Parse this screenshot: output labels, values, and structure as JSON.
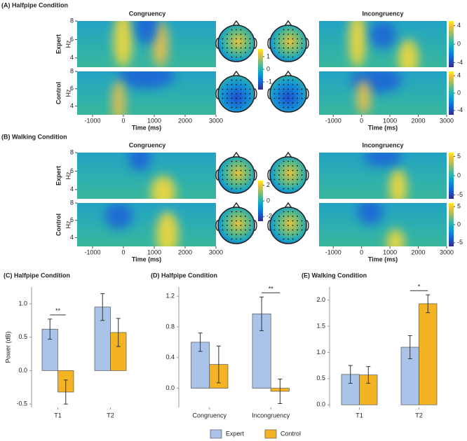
{
  "panels": {
    "a": {
      "label": "(A) Halfpipe Condition",
      "left_title": "Congruency",
      "right_title": "Incongruency",
      "rows": [
        "Expert",
        "Control"
      ],
      "y_axis_label": "Hz",
      "x_axis_label": "Time (ms)",
      "xlim": [
        -1500,
        3000
      ],
      "xticks": [
        -1000,
        0,
        1000,
        2000,
        3000
      ],
      "ylim": [
        3,
        8
      ],
      "yticks": [
        4,
        6,
        8
      ],
      "colorbar_lim": [
        -5,
        5
      ],
      "colorbar_ticks": [
        4,
        0,
        -4
      ],
      "topo_lim": [
        -1.6,
        1.6
      ],
      "topo_ticks": [
        1,
        0,
        -1
      ]
    },
    "b": {
      "label": "(B) Walking Condition",
      "left_title": "Congruency",
      "right_title": "Incongruency",
      "rows": [
        "Expert",
        "Control"
      ],
      "y_axis_label": "Hz",
      "x_axis_label": "Time (ms)",
      "xlim": [
        -1500,
        3000
      ],
      "xticks": [
        -1000,
        0,
        1000,
        2000,
        3000
      ],
      "ylim": [
        3,
        8
      ],
      "yticks": [
        4,
        6,
        8
      ],
      "colorbar_lim": [
        -6,
        6
      ],
      "colorbar_ticks": [
        5,
        0,
        -5
      ],
      "topo_lim": [
        -2.6,
        2.6
      ],
      "topo_ticks": [
        2,
        0,
        -2
      ]
    }
  },
  "chart_data": [
    {
      "type": "bar",
      "title": "(C) Halfpipe Condition",
      "y_label": "Power (dB)",
      "categories": [
        "T1",
        "T2"
      ],
      "series": [
        {
          "name": "Expert",
          "color": "#a9c4e8",
          "values": [
            0.62,
            0.95
          ],
          "errors": [
            0.15,
            0.2
          ]
        },
        {
          "name": "Control",
          "color": "#f3b323",
          "values": [
            -0.32,
            0.57
          ],
          "errors": [
            0.18,
            0.21
          ]
        }
      ],
      "ylim": [
        -0.55,
        1.25
      ],
      "yticks": [
        {
          "value": -0.5,
          "label": "-0.5"
        },
        {
          "value": 0,
          "label": "0.0"
        },
        {
          "value": 0.5,
          "label": "0.5"
        },
        {
          "value": 1,
          "label": "1.0"
        }
      ],
      "annotations": [
        {
          "text": "**",
          "x": "T1"
        }
      ]
    },
    {
      "type": "bar",
      "title": "(D) Halfpipe Condition",
      "categories": [
        "Congruency",
        "Incongruency"
      ],
      "series": [
        {
          "name": "Expert",
          "color": "#a9c4e8",
          "values": [
            0.6,
            0.97
          ],
          "errors": [
            0.12,
            0.22
          ]
        },
        {
          "name": "Control",
          "color": "#f3b323",
          "values": [
            0.31,
            -0.04
          ],
          "errors": [
            0.24,
            0.16
          ]
        }
      ],
      "ylim": [
        -0.25,
        1.32
      ],
      "yticks": [
        {
          "value": 0,
          "label": "0.0"
        },
        {
          "value": 0.4,
          "label": "0.4"
        },
        {
          "value": 0.8,
          "label": "0.8"
        },
        {
          "value": 1.2,
          "label": "1.2"
        }
      ],
      "annotations": [
        {
          "text": "**",
          "x": "Incongruency"
        }
      ]
    },
    {
      "type": "bar",
      "title": "(E) Walking Condition",
      "categories": [
        "T1",
        "T2"
      ],
      "series": [
        {
          "name": "Expert",
          "color": "#a9c4e8",
          "values": [
            0.58,
            1.1
          ],
          "errors": [
            0.17,
            0.22
          ]
        },
        {
          "name": "Control",
          "color": "#f3b323",
          "values": [
            0.57,
            1.93
          ],
          "errors": [
            0.16,
            0.17
          ]
        }
      ],
      "ylim": [
        -0.05,
        2.25
      ],
      "yticks": [
        {
          "value": 0,
          "label": "0.0"
        },
        {
          "value": 0.5,
          "label": "0.5"
        },
        {
          "value": 1,
          "label": "1.0"
        },
        {
          "value": 1.5,
          "label": "1.5"
        },
        {
          "value": 2,
          "label": "2.0"
        }
      ],
      "annotations": [
        {
          "text": "*",
          "x": "T2"
        }
      ]
    }
  ]
}
